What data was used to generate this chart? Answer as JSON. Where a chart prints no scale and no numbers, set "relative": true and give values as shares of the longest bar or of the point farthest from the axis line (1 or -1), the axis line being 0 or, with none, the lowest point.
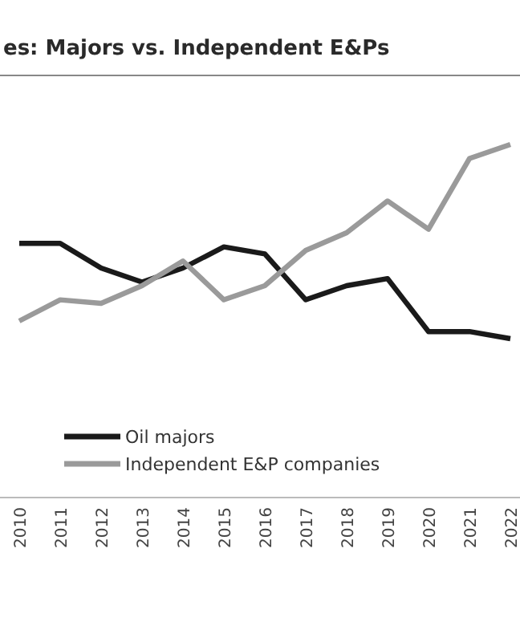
{
  "chart_data": {
    "type": "line",
    "title": "es: Majors vs. Independent E&Ps",
    "relative": true,
    "legend": "bottom left",
    "grid": false,
    "categories": [
      "2010",
      "2011",
      "2012",
      "2013",
      "2014",
      "2015",
      "2016",
      "2017",
      "2018",
      "2019",
      "2020",
      "2021",
      "2022"
    ],
    "series": [
      {
        "name": "Oil majors",
        "color": "#1a1a1a",
        "values": [
          0.72,
          0.72,
          0.65,
          0.61,
          0.65,
          0.71,
          0.69,
          0.56,
          0.6,
          0.62,
          0.47,
          0.47,
          0.45
        ]
      },
      {
        "name": "Independent E&P companies",
        "color": "#9a9a9a",
        "values": [
          0.5,
          0.56,
          0.55,
          0.6,
          0.67,
          0.56,
          0.6,
          0.7,
          0.75,
          0.84,
          0.76,
          0.96,
          1
        ]
      }
    ]
  }
}
